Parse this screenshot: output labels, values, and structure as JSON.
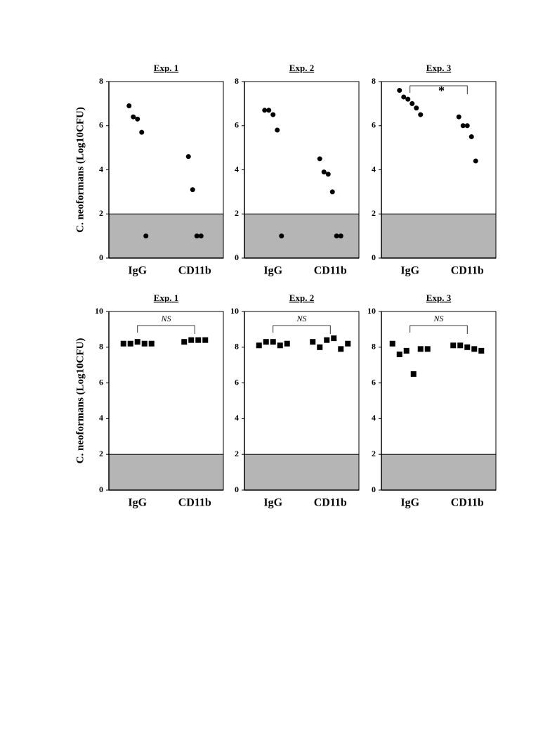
{
  "chart_data": [
    {
      "type": "strip",
      "title": "Exp. 1",
      "ylabel": "C. neoformans (Log10CFU)",
      "categories": [
        "IgG",
        "CD11b"
      ],
      "values": [
        [
          6.9,
          6.4,
          6.3,
          5.7,
          1.0
        ],
        [
          4.6,
          3.1,
          1.0,
          1.0
        ]
      ],
      "marker": "circle",
      "color": "#000000",
      "ylim": [
        0,
        8
      ],
      "yticks": [
        0,
        2,
        4,
        6,
        8
      ],
      "limit": 2
    },
    {
      "type": "strip",
      "title": "Exp. 2",
      "categories": [
        "IgG",
        "CD11b"
      ],
      "values": [
        [
          6.7,
          6.7,
          6.5,
          5.8,
          1.0
        ],
        [
          4.5,
          3.9,
          3.8,
          3.0,
          1.0,
          1.0
        ]
      ],
      "marker": "circle",
      "color": "#000000",
      "ylim": [
        0,
        8
      ],
      "yticks": [
        0,
        2,
        4,
        6,
        8
      ],
      "limit": 2
    },
    {
      "type": "strip",
      "title": "Exp. 3",
      "categories": [
        "IgG",
        "CD11b"
      ],
      "values": [
        [
          7.6,
          7.3,
          7.2,
          7.0,
          6.8,
          6.5
        ],
        [
          6.4,
          6.0,
          6.0,
          5.5,
          4.4
        ]
      ],
      "marker": "circle",
      "color": "#000000",
      "ylim": [
        0,
        8
      ],
      "yticks": [
        0,
        2,
        4,
        6,
        8
      ],
      "limit": 2,
      "annotation": "*"
    },
    {
      "type": "strip",
      "title": "Exp. 1",
      "ylabel": "C. neoformans (Log10CFU)",
      "categories": [
        "IgG",
        "CD11b"
      ],
      "values": [
        [
          8.2,
          8.2,
          8.3,
          8.2,
          8.2
        ],
        [
          8.3,
          8.4,
          8.4,
          8.4
        ]
      ],
      "marker": "square",
      "color": "#000000",
      "ylim": [
        0,
        10
      ],
      "yticks": [
        0,
        2,
        4,
        6,
        8,
        10
      ],
      "limit": 2,
      "annotation": "NS"
    },
    {
      "type": "strip",
      "title": "Exp. 2",
      "categories": [
        "IgG",
        "CD11b"
      ],
      "values": [
        [
          8.1,
          8.3,
          8.3,
          8.1,
          8.2
        ],
        [
          8.3,
          8.0,
          8.4,
          8.5,
          7.9,
          8.2
        ]
      ],
      "marker": "square",
      "color": "#000000",
      "ylim": [
        0,
        10
      ],
      "yticks": [
        0,
        2,
        4,
        6,
        8,
        10
      ],
      "limit": 2,
      "annotation": "NS"
    },
    {
      "type": "strip",
      "title": "Exp. 3",
      "categories": [
        "IgG",
        "CD11b"
      ],
      "values": [
        [
          8.2,
          7.6,
          7.8,
          6.5,
          7.9,
          7.9
        ],
        [
          8.1,
          8.1,
          8.0,
          7.9,
          7.8
        ]
      ],
      "marker": "square",
      "color": "#000000",
      "ylim": [
        0,
        10
      ],
      "yticks": [
        0,
        2,
        4,
        6,
        8,
        10
      ],
      "limit": 2,
      "annotation": "NS"
    }
  ]
}
